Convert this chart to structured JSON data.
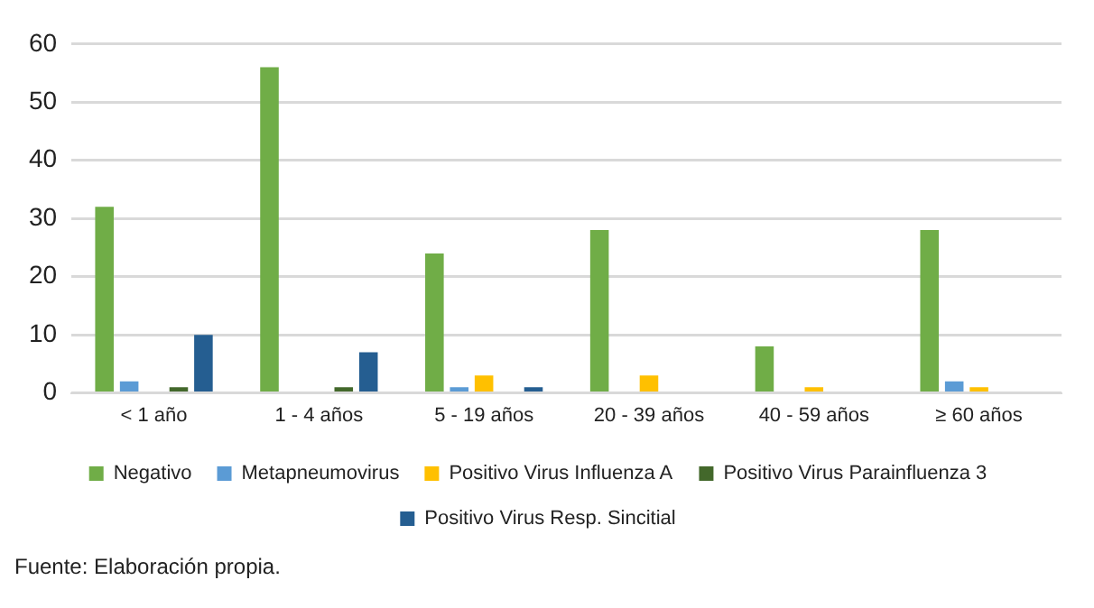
{
  "chart_data": {
    "type": "bar",
    "categories": [
      "< 1 año",
      "1 - 4 años",
      "5 - 19 años",
      "20 - 39 años",
      "40 - 59 años",
      "≥ 60 años"
    ],
    "series": [
      {
        "name": "Negativo",
        "color": "#70ad47",
        "values": [
          32,
          56,
          24,
          28,
          8,
          28
        ]
      },
      {
        "name": "Metapneumovirus",
        "color": "#5b9bd5",
        "values": [
          2,
          0,
          1,
          0,
          0,
          2
        ]
      },
      {
        "name": "Positivo Virus Influenza A",
        "color": "#ffc000",
        "values": [
          0,
          0,
          3,
          3,
          1,
          1
        ]
      },
      {
        "name": "Positivo Virus Parainfluenza 3",
        "color": "#43682b",
        "values": [
          1,
          1,
          0,
          0,
          0,
          0
        ]
      },
      {
        "name": "Positivo Virus Resp. Sincitial",
        "color": "#255e91",
        "values": [
          10,
          7,
          1,
          0,
          0,
          0
        ]
      }
    ],
    "ylim": [
      0,
      60
    ],
    "yticks": [
      0,
      10,
      20,
      30,
      40,
      50,
      60
    ],
    "grid": "y",
    "legend": "bottom",
    "annotations": [
      "Fuente: Elaboración propia."
    ]
  }
}
